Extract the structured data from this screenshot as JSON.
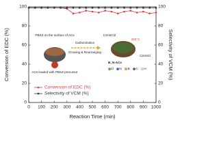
{
  "chart_data": {
    "type": "line",
    "x": [
      0,
      50,
      100,
      150,
      200,
      250,
      300,
      350,
      400,
      450,
      500,
      550,
      600,
      650,
      700,
      750,
      800,
      850,
      900,
      950,
      1000
    ],
    "series": [
      {
        "name": "Conversion of EDC (%)",
        "color": "#e8383d",
        "values": [
          99,
          99,
          99,
          99,
          99,
          99,
          98,
          93,
          94,
          96,
          95,
          94,
          96,
          95,
          93,
          95,
          96,
          94,
          95,
          93,
          94
        ]
      },
      {
        "name": "Selectivity of VCM (%)",
        "color": "#333333",
        "axis": "y2",
        "values": [
          99,
          99,
          99,
          99,
          99,
          99,
          99,
          99,
          99,
          99,
          99,
          99,
          99,
          99,
          99,
          99,
          99,
          99,
          99,
          99,
          99
        ]
      }
    ],
    "x_label": "Reaction Time (min)",
    "y_label": "Conversion of EDC (%)",
    "y2_label": "Selectivity of VCM (%)",
    "xlim": [
      0,
      1000
    ],
    "xticks": [
      0,
      100,
      200,
      300,
      400,
      500,
      600,
      700,
      800,
      900,
      1000
    ],
    "ylim": [
      0,
      100
    ],
    "yticks": [
      0,
      20,
      40,
      60,
      80,
      100
    ],
    "y2lim": [
      0,
      100
    ],
    "y2ticks": [
      0,
      20,
      40,
      60,
      80,
      100
    ],
    "legend": "lower left",
    "annotations": [
      "PBSZ on the surface of ACs",
      "Carbonization",
      "Growing & Rearranging",
      "ACs loaded with PBSZ precursor",
      "B, N-ACs",
      "C2H4Cl2",
      "260°C",
      "C2H3Cl",
      "Cl",
      "N",
      "B",
      "C",
      "H"
    ]
  }
}
